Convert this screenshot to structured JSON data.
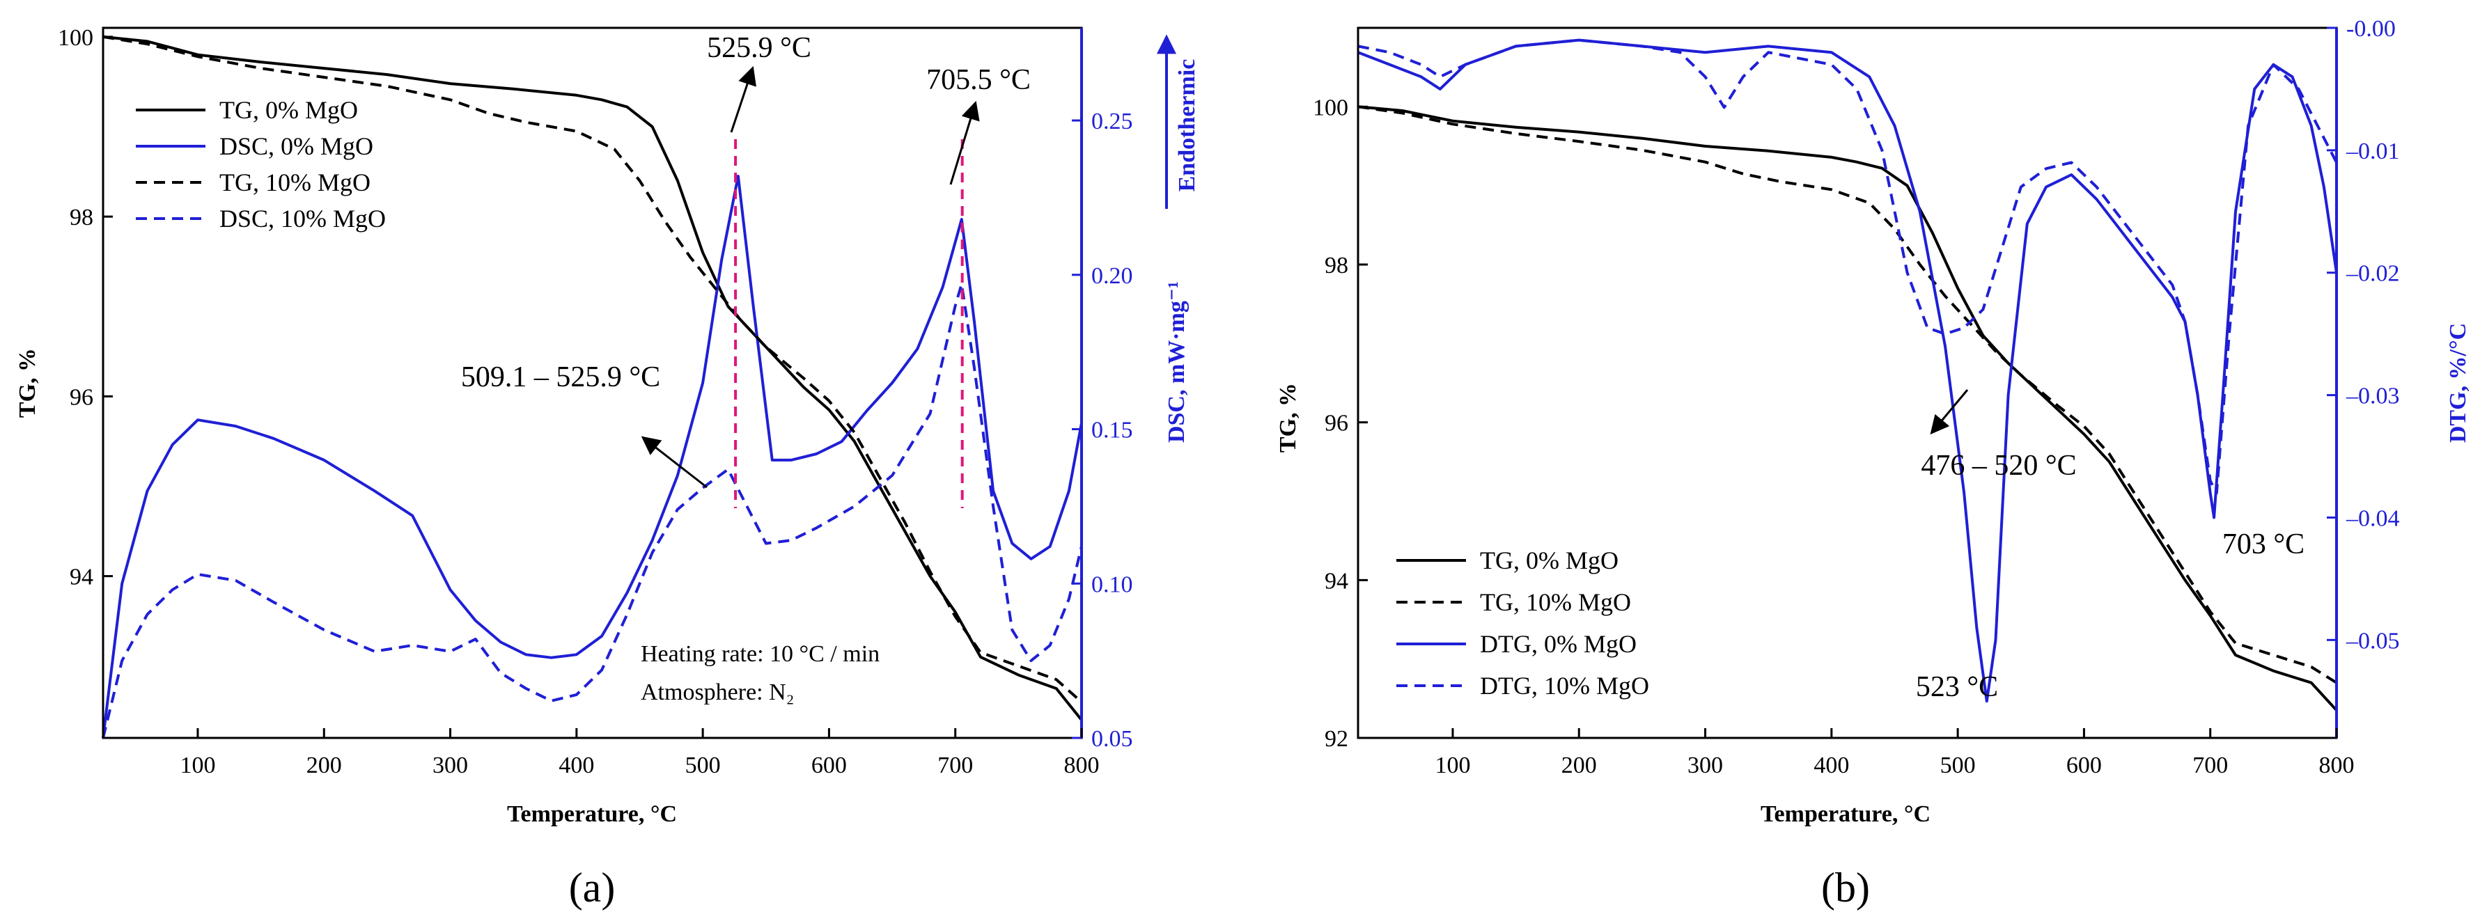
{
  "chart_data": [
    {
      "id": "a",
      "type": "line",
      "panel_label": "(a)",
      "xlabel": "Temperature, °C",
      "ylabel": "TG, %",
      "y2label": "DSC, mW·mg⁻¹",
      "y2arrow_label": "Endothermic",
      "xlim": [
        25,
        800
      ],
      "ylim": [
        92.2,
        100.1
      ],
      "y2lim": [
        0.05,
        0.28
      ],
      "xticks": [
        100,
        200,
        300,
        400,
        500,
        600,
        700,
        800
      ],
      "yticks": [
        94,
        96,
        98,
        100
      ],
      "y2ticks": [
        0.05,
        0.1,
        0.15,
        0.2,
        0.25
      ],
      "colors": {
        "tg": "#000000",
        "dsc": "#1f1fd6",
        "marker": "#e0157a"
      },
      "legend_position": "top-left",
      "series": [
        {
          "name": "TG, 0% MgO",
          "axis": "left",
          "style": "solid",
          "color": "#000000",
          "x": [
            25,
            60,
            100,
            150,
            200,
            250,
            300,
            350,
            400,
            420,
            440,
            460,
            480,
            500,
            520,
            540,
            560,
            580,
            600,
            620,
            640,
            660,
            680,
            700,
            720,
            750,
            780,
            800
          ],
          "y": [
            100.0,
            99.95,
            99.8,
            99.72,
            99.65,
            99.58,
            99.48,
            99.42,
            99.35,
            99.3,
            99.22,
            99.0,
            98.4,
            97.6,
            97.0,
            96.7,
            96.4,
            96.1,
            95.85,
            95.5,
            95.0,
            94.5,
            94.0,
            93.6,
            93.1,
            92.9,
            92.75,
            92.4
          ]
        },
        {
          "name": "DSC, 0% MgO",
          "axis": "right",
          "style": "solid",
          "color": "#1f1fd6",
          "x": [
            25,
            40,
            60,
            80,
            100,
            130,
            160,
            200,
            240,
            270,
            300,
            320,
            340,
            360,
            380,
            400,
            420,
            440,
            460,
            480,
            500,
            515,
            528,
            540,
            555,
            570,
            590,
            610,
            630,
            650,
            670,
            690,
            705,
            715,
            730,
            745,
            760,
            775,
            790,
            800
          ],
          "y": [
            0.05,
            0.1,
            0.13,
            0.145,
            0.153,
            0.151,
            0.147,
            0.14,
            0.13,
            0.122,
            0.098,
            0.088,
            0.081,
            0.077,
            0.076,
            0.077,
            0.083,
            0.097,
            0.114,
            0.135,
            0.165,
            0.205,
            0.232,
            0.19,
            0.14,
            0.14,
            0.142,
            0.146,
            0.156,
            0.165,
            0.176,
            0.196,
            0.218,
            0.185,
            0.13,
            0.113,
            0.108,
            0.112,
            0.13,
            0.152
          ]
        },
        {
          "name": "TG, 10% MgO",
          "axis": "left",
          "style": "dashed",
          "color": "#000000",
          "x": [
            25,
            60,
            100,
            150,
            200,
            250,
            300,
            330,
            360,
            400,
            430,
            450,
            470,
            490,
            510,
            530,
            550,
            580,
            600,
            620,
            640,
            660,
            680,
            700,
            720,
            750,
            780,
            800
          ],
          "y": [
            100.0,
            99.92,
            99.78,
            99.65,
            99.55,
            99.45,
            99.3,
            99.15,
            99.05,
            98.95,
            98.75,
            98.4,
            97.95,
            97.55,
            97.2,
            96.85,
            96.55,
            96.2,
            95.95,
            95.6,
            95.1,
            94.6,
            94.05,
            93.55,
            93.15,
            93.0,
            92.85,
            92.6
          ]
        },
        {
          "name": "DSC, 10% MgO",
          "axis": "right",
          "style": "dashed",
          "color": "#1f1fd6",
          "x": [
            25,
            40,
            60,
            80,
            100,
            130,
            160,
            200,
            240,
            270,
            300,
            320,
            340,
            360,
            380,
            400,
            420,
            440,
            460,
            480,
            500,
            520,
            535,
            550,
            570,
            590,
            620,
            650,
            680,
            700,
            705,
            715,
            730,
            745,
            760,
            775,
            790,
            800
          ],
          "y": [
            0.05,
            0.075,
            0.09,
            0.098,
            0.103,
            0.101,
            0.094,
            0.085,
            0.078,
            0.08,
            0.078,
            0.082,
            0.071,
            0.066,
            0.062,
            0.064,
            0.072,
            0.09,
            0.11,
            0.124,
            0.131,
            0.137,
            0.125,
            0.113,
            0.114,
            0.118,
            0.125,
            0.135,
            0.155,
            0.19,
            0.197,
            0.17,
            0.125,
            0.085,
            0.075,
            0.08,
            0.095,
            0.112
          ]
        }
      ],
      "markers": [
        {
          "x": 525.9,
          "label": "525.9 °C"
        },
        {
          "x": 705.5,
          "label": "705.5 °C"
        }
      ],
      "annotations": [
        {
          "label": "509.1 – 525.9 °C",
          "target_x": 515,
          "target_y2": 0.137
        }
      ],
      "notes": [
        "Heating rate: 10 °C / min",
        "Atmosphere: N₂"
      ]
    },
    {
      "id": "b",
      "type": "line",
      "panel_label": "(b)",
      "xlabel": "Temperature, °C",
      "ylabel": "TG, %",
      "y2label": "DTG, %/°C",
      "xlim": [
        25,
        800
      ],
      "ylim": [
        92,
        101
      ],
      "y2lim": [
        -0.058,
        0.0
      ],
      "xticks": [
        100,
        200,
        300,
        400,
        500,
        600,
        700,
        800
      ],
      "yticks": [
        92,
        94,
        96,
        98,
        100
      ],
      "y2ticks": [
        -0.05,
        -0.04,
        -0.03,
        -0.02,
        -0.01,
        -0.0
      ],
      "colors": {
        "tg": "#000000",
        "dtg": "#1f1fd6"
      },
      "legend_position": "bottom-left",
      "series": [
        {
          "name": "TG, 0% MgO",
          "axis": "left",
          "style": "solid",
          "color": "#000000",
          "x": [
            25,
            60,
            100,
            150,
            200,
            250,
            300,
            350,
            400,
            420,
            440,
            460,
            480,
            500,
            520,
            540,
            560,
            580,
            600,
            620,
            640,
            660,
            680,
            700,
            720,
            750,
            780,
            800
          ],
          "y": [
            100.0,
            99.95,
            99.82,
            99.74,
            99.68,
            99.6,
            99.5,
            99.44,
            99.36,
            99.3,
            99.22,
            99.0,
            98.4,
            97.7,
            97.1,
            96.75,
            96.45,
            96.15,
            95.85,
            95.5,
            95.0,
            94.5,
            94.0,
            93.55,
            93.05,
            92.85,
            92.7,
            92.35
          ]
        },
        {
          "name": "TG, 10% MgO",
          "axis": "left",
          "style": "dashed",
          "color": "#000000",
          "x": [
            25,
            60,
            100,
            150,
            200,
            250,
            300,
            330,
            360,
            400,
            430,
            450,
            470,
            490,
            510,
            530,
            550,
            580,
            600,
            620,
            640,
            660,
            680,
            700,
            720,
            750,
            780,
            800
          ],
          "y": [
            100.0,
            99.92,
            99.78,
            99.66,
            99.56,
            99.45,
            99.3,
            99.15,
            99.05,
            98.95,
            98.78,
            98.45,
            98.0,
            97.6,
            97.25,
            96.9,
            96.6,
            96.2,
            95.95,
            95.6,
            95.1,
            94.6,
            94.1,
            93.6,
            93.2,
            93.05,
            92.9,
            92.7
          ]
        },
        {
          "name": "DTG, 0%  MgO",
          "axis": "right",
          "style": "solid",
          "color": "#1f1fd6",
          "x": [
            25,
            50,
            75,
            90,
            110,
            150,
            200,
            250,
            300,
            350,
            400,
            430,
            450,
            470,
            490,
            505,
            515,
            523,
            530,
            540,
            555,
            570,
            590,
            610,
            640,
            670,
            680,
            690,
            700,
            703,
            710,
            720,
            735,
            750,
            765,
            780,
            790,
            800
          ],
          "y": [
            -0.002,
            -0.003,
            -0.004,
            -0.005,
            -0.003,
            -0.0015,
            -0.001,
            -0.0015,
            -0.002,
            -0.0015,
            -0.002,
            -0.004,
            -0.008,
            -0.015,
            -0.026,
            -0.038,
            -0.049,
            -0.055,
            -0.05,
            -0.03,
            -0.016,
            -0.013,
            -0.012,
            -0.014,
            -0.018,
            -0.022,
            -0.024,
            -0.03,
            -0.038,
            -0.04,
            -0.03,
            -0.015,
            -0.005,
            -0.003,
            -0.004,
            -0.008,
            -0.013,
            -0.02
          ]
        },
        {
          "name": "DTG, 10% MgO",
          "axis": "right",
          "style": "dashed",
          "color": "#1f1fd6",
          "x": [
            25,
            50,
            75,
            90,
            110,
            150,
            200,
            250,
            280,
            300,
            315,
            330,
            350,
            400,
            420,
            440,
            460,
            476,
            490,
            505,
            520,
            535,
            550,
            570,
            590,
            610,
            640,
            670,
            680,
            690,
            700,
            705,
            715,
            730,
            750,
            770,
            790,
            800
          ],
          "y": [
            -0.0015,
            -0.002,
            -0.003,
            -0.004,
            -0.003,
            -0.0015,
            -0.001,
            -0.0015,
            -0.002,
            -0.004,
            -0.0065,
            -0.004,
            -0.002,
            -0.003,
            -0.005,
            -0.01,
            -0.02,
            -0.0245,
            -0.025,
            -0.0245,
            -0.023,
            -0.018,
            -0.013,
            -0.0115,
            -0.011,
            -0.013,
            -0.017,
            -0.021,
            -0.024,
            -0.03,
            -0.037,
            -0.038,
            -0.025,
            -0.008,
            -0.003,
            -0.005,
            -0.009,
            -0.011
          ]
        }
      ],
      "annotations": [
        {
          "label": "476 – 520 °C",
          "target_x": 478,
          "target_y2": -0.025
        },
        {
          "label": "523 °C",
          "x": 523
        },
        {
          "label": "703 °C",
          "x": 703
        }
      ]
    }
  ]
}
